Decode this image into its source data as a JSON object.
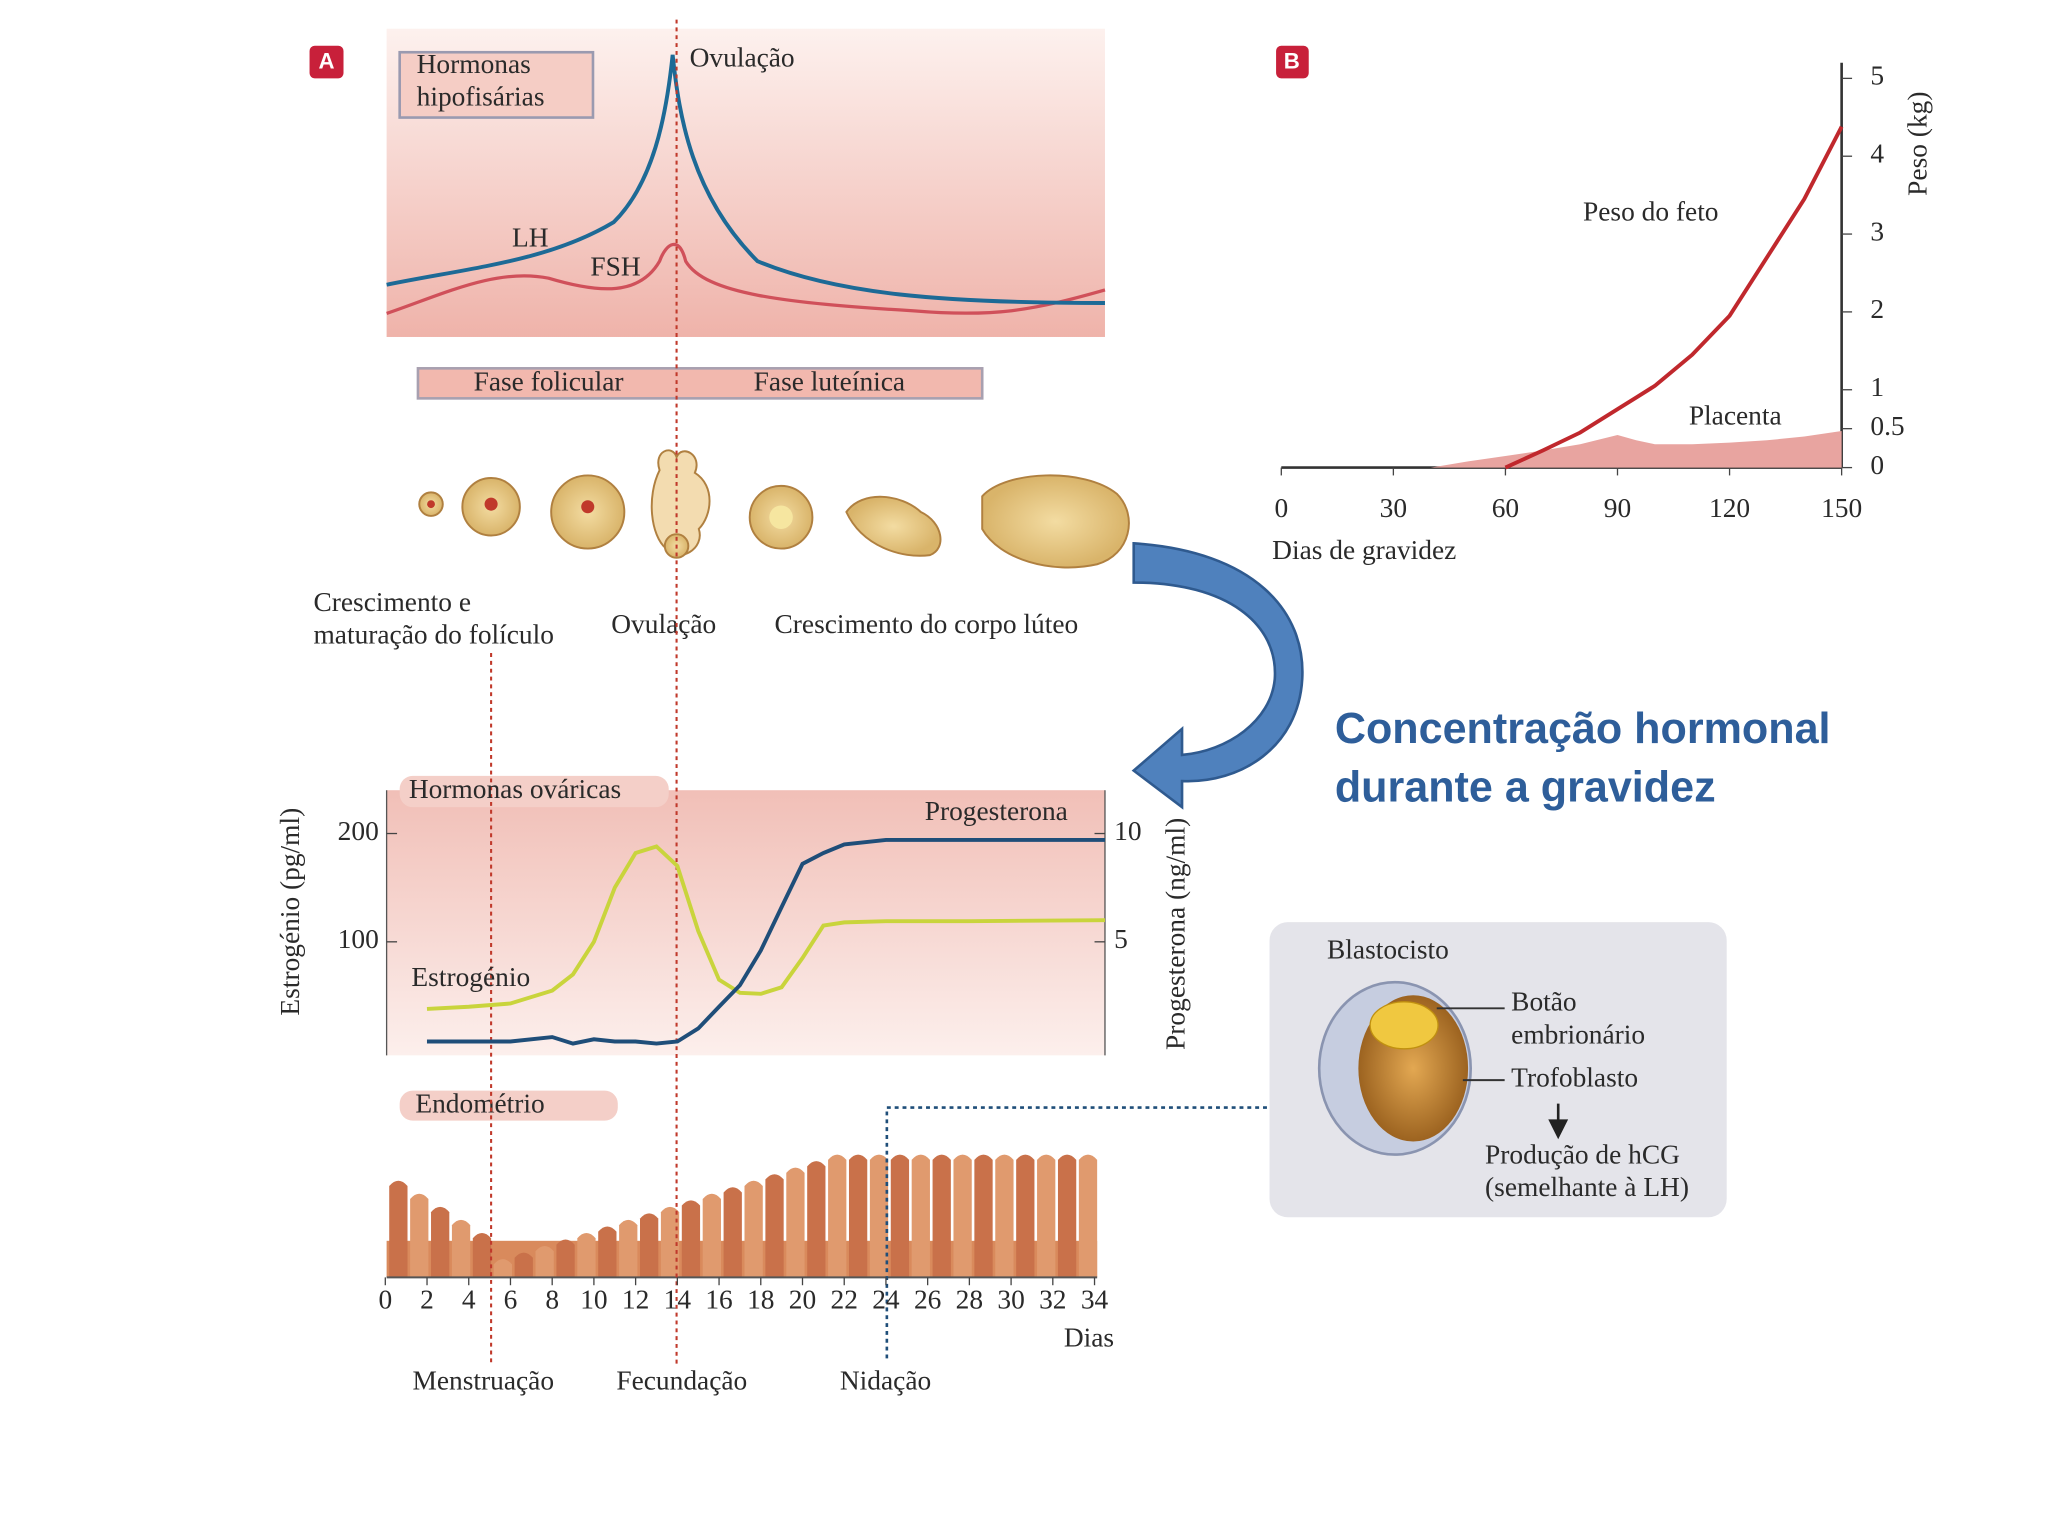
{
  "panel_a_label": "A",
  "pituitary": {
    "title": [
      "Hormonas",
      "hipofisárias"
    ],
    "ovulation": "Ovulação",
    "lh": "LH",
    "fsh": "FSH"
  },
  "phases": {
    "follicular": "Fase folicular",
    "luteal": "Fase luteínica"
  },
  "ovary_labels": {
    "follicle_growth": [
      "Crescimento e",
      "maturação do folículo"
    ],
    "ovulation": "Ovulação",
    "corpus_luteum": "Crescimento do corpo lúteo"
  },
  "chart_data": [
    {
      "type": "line",
      "title": "Hormonas ováricas",
      "x": [
        2,
        4,
        6,
        8,
        9,
        10,
        11,
        12,
        13,
        14,
        15,
        16,
        17,
        18,
        19,
        20,
        21,
        22,
        24,
        28,
        34.5
      ],
      "xlim": [
        0,
        34
      ],
      "xticks": [
        0,
        2,
        4,
        6,
        8,
        10,
        12,
        14,
        16,
        18,
        20,
        22,
        24,
        26,
        28,
        30,
        32,
        34
      ],
      "x_label": "Dias",
      "ylim": [
        0,
        240
      ],
      "yticks": [
        100,
        200
      ],
      "y_label": "Estrogénio (pg/ml)",
      "y2lim": [
        0,
        12
      ],
      "y2ticks": [
        5,
        10
      ],
      "y2_label": "Progesterona (ng/ml)",
      "series": [
        {
          "name": "Estrogénio",
          "color": "#c9d43c",
          "values": [
            38,
            40,
            43,
            55,
            70,
            100,
            150,
            182,
            188,
            170,
            110,
            65,
            53,
            52,
            58,
            85,
            115,
            118,
            119,
            119,
            120
          ]
        },
        {
          "name": "Progesterona",
          "color": "#1f4e79",
          "axis": "y2",
          "values": [
            0.4,
            0.4,
            0.4,
            0.6,
            0.3,
            0.5,
            0.4,
            0.4,
            0.3,
            0.4,
            1.0,
            2.0,
            3.0,
            4.6,
            6.6,
            8.6,
            9.1,
            9.5,
            9.7,
            9.7,
            9.7
          ]
        }
      ]
    },
    {
      "type": "line",
      "x": [
        40,
        50,
        60,
        70,
        80,
        90,
        95,
        100,
        110,
        120,
        130,
        140,
        150
      ],
      "xlim": [
        0,
        150
      ],
      "xticks": [
        0,
        30,
        60,
        90,
        120,
        150
      ],
      "x_label": "Dias de gravidez",
      "ylim": [
        0,
        5
      ],
      "yticks": [
        0,
        0.5,
        1,
        2,
        3,
        4,
        5
      ],
      "y_label": "Peso (kg)",
      "series": [
        {
          "name": "Peso do feto",
          "color": "#c0282d",
          "values": [
            null,
            null,
            0,
            0.22,
            0.45,
            0.75,
            0.9,
            1.05,
            1.45,
            1.95,
            2.7,
            3.45,
            4.38
          ]
        },
        {
          "name": "Placenta",
          "color": "#e8a4a0",
          "type": "area",
          "values": [
            0,
            0.08,
            0.15,
            0.22,
            0.3,
            0.42,
            0.35,
            0.3,
            0.3,
            0.32,
            0.35,
            0.4,
            0.47
          ]
        }
      ]
    }
  ],
  "endometrium": {
    "title": "Endométrio"
  },
  "events": [
    "Menstruação",
    "Fecundação",
    "Nidação"
  ],
  "panel_b_label": "B",
  "callout": [
    "Concentração hormonal",
    "durante a gravidez"
  ],
  "blastocyst": {
    "title": "Blastocisto",
    "embryo_button": [
      "Botão",
      "embrionário"
    ],
    "trophoblast": "Trofoblasto",
    "production": [
      "Produção de hCG",
      "(semelhante à LH)"
    ]
  }
}
